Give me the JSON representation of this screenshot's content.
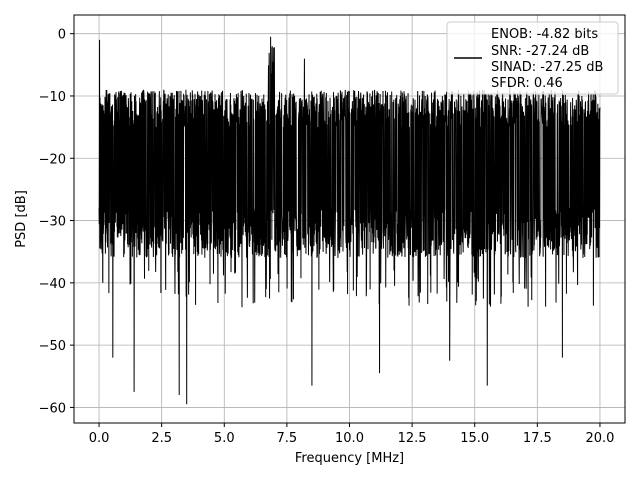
{
  "chart_data": {
    "type": "line",
    "title": "",
    "xlabel": "Frequency [MHz]",
    "ylabel": "PSD [dB]",
    "xlim": [
      -1.0,
      21.0
    ],
    "ylim": [
      -62.5,
      3.0
    ],
    "xticks": [
      0.0,
      2.5,
      5.0,
      7.5,
      10.0,
      12.5,
      15.0,
      17.5,
      20.0
    ],
    "xtick_labels": [
      "0.0",
      "2.5",
      "5.0",
      "7.5",
      "10.0",
      "12.5",
      "15.0",
      "17.5",
      "20.0"
    ],
    "yticks": [
      0,
      -10,
      -20,
      -30,
      -40,
      -50,
      -60
    ],
    "ytick_labels": [
      "0",
      "−10",
      "−20",
      "−30",
      "−40",
      "−50",
      "−60"
    ],
    "grid": true,
    "legend_position": "top-right",
    "legend_lines": [
      "ENOB: -4.82 bits",
      "SNR: -27.24 dB",
      "SINAD: -27.25 dB",
      "SFDR: 0.46"
    ],
    "line_color": "#000000",
    "series": [
      {
        "x_range": [
          0.0,
          20.0
        ],
        "noise_band": {
          "upper_typical": -12,
          "lower_typical": -34,
          "center": -22
        },
        "peaks": [
          {
            "x": 0.02,
            "y": -1.0
          },
          {
            "x": 6.85,
            "y": -0.5
          },
          {
            "x": 8.2,
            "y": -4.0
          },
          {
            "x": 16.4,
            "y": -7.5
          }
        ],
        "dips": [
          {
            "x": 0.15,
            "y": -40.0
          },
          {
            "x": 0.55,
            "y": -52.0
          },
          {
            "x": 1.4,
            "y": -57.5
          },
          {
            "x": 3.2,
            "y": -58.0
          },
          {
            "x": 3.5,
            "y": -59.5
          },
          {
            "x": 8.5,
            "y": -56.5
          },
          {
            "x": 11.2,
            "y": -54.5
          },
          {
            "x": 14.0,
            "y": -52.5
          },
          {
            "x": 15.5,
            "y": -56.5
          },
          {
            "x": 18.5,
            "y": -52.0
          }
        ]
      }
    ]
  }
}
